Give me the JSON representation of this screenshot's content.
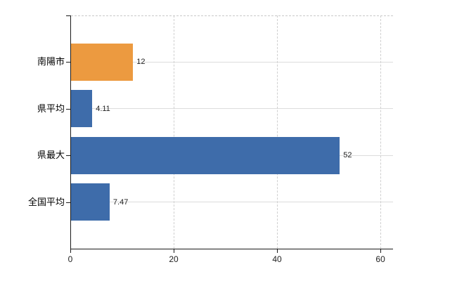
{
  "chart_data": {
    "type": "bar",
    "orientation": "horizontal",
    "title": "",
    "xlabel": "",
    "ylabel": "",
    "categories": [
      "南陽市",
      "県平均",
      "県最大",
      "全国平均"
    ],
    "values": [
      12,
      4.11,
      52,
      7.47
    ],
    "value_labels": [
      "12",
      "4.11",
      "52",
      "7.47"
    ],
    "bar_colors": [
      "#EC9A40",
      "#3E6CAA",
      "#3E6CAA",
      "#3E6CAA"
    ],
    "highlight_category": "南陽市",
    "x_ticks": [
      0,
      20,
      40,
      60
    ],
    "x_tick_labels": [
      "0",
      "20",
      "40",
      "60"
    ],
    "xlim": [
      0,
      62.3
    ],
    "grid": true,
    "grid_style": "dashed-vertical, solid-horizontal-at-category-centers",
    "legend_position": "none"
  },
  "colors": {
    "highlight_bar": "#EC9A40",
    "default_bar": "#3E6CAA",
    "axis": "#1a1a1a",
    "horizontal_gridline": "#dcdcdc",
    "dashed_gridline": "#cfcfcf",
    "tick_label_text": "#222222",
    "category_label_text": "#000000",
    "background": "#ffffff"
  }
}
